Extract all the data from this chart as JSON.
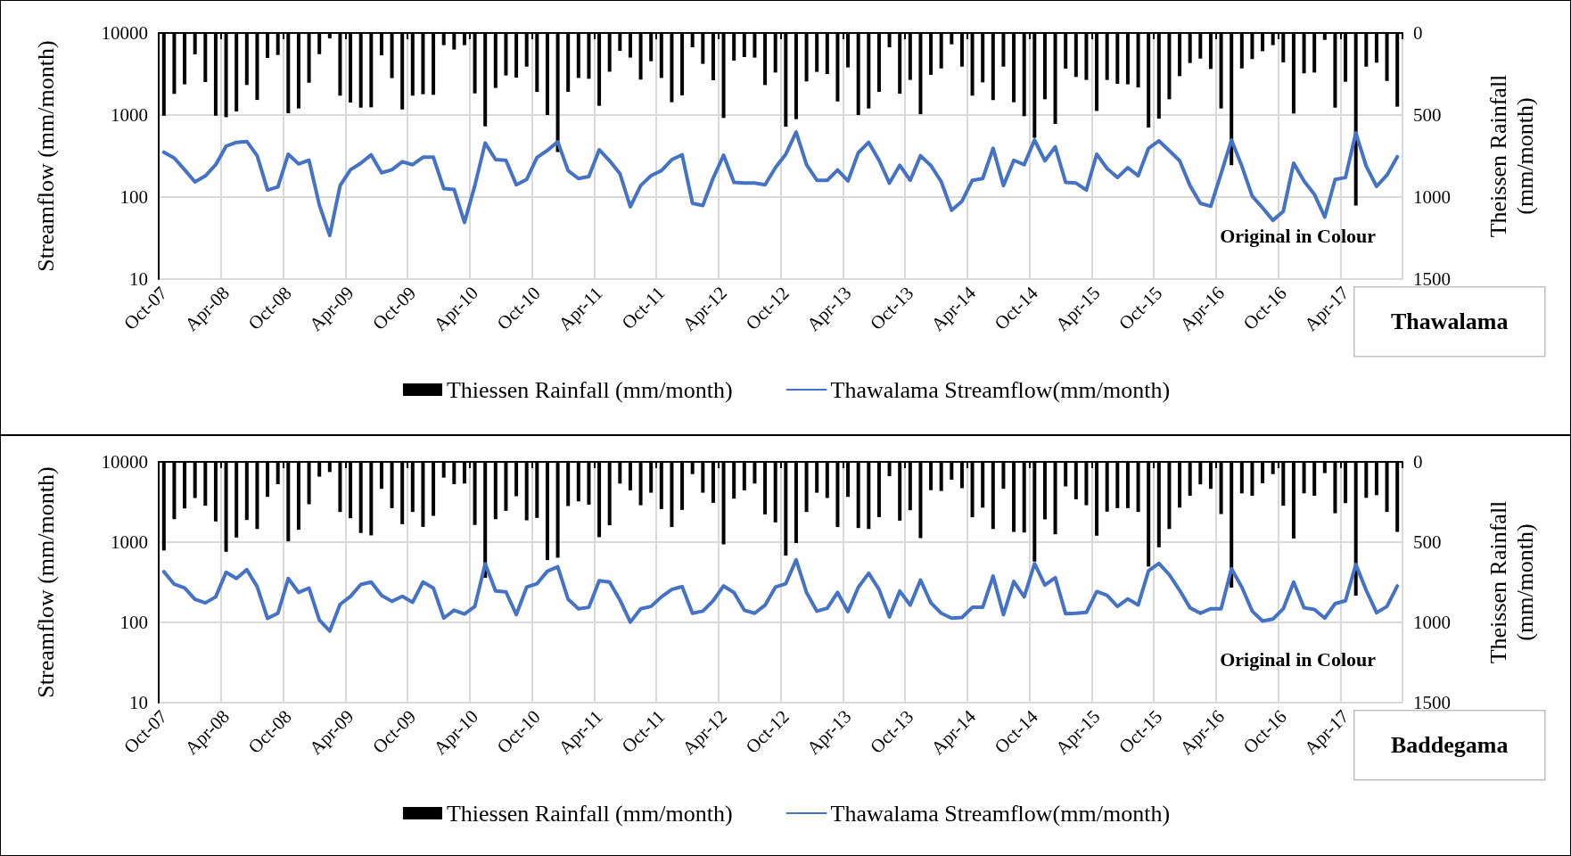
{
  "chart_data": [
    {
      "type": "line",
      "ylabel": "Streamflow (mm/month)",
      "y2label": "Theissen Rainfall (mm/month)",
      "annotations": [
        "Original in Colour",
        "Thawalama"
      ],
      "categories": [
        "Oct-07",
        null,
        null,
        null,
        null,
        null,
        "Apr-08",
        null,
        null,
        null,
        null,
        null,
        "Oct-08",
        null,
        null,
        null,
        null,
        null,
        "Apr-09",
        null,
        null,
        null,
        null,
        null,
        "Oct-09",
        null,
        null,
        null,
        null,
        null,
        "Apr-10",
        null,
        null,
        null,
        null,
        null,
        "Oct-10",
        null,
        null,
        null,
        null,
        null,
        "Apr-11",
        null,
        null,
        null,
        null,
        null,
        "Oct-11",
        null,
        null,
        null,
        null,
        null,
        "Apr-12",
        null,
        null,
        null,
        null,
        null,
        "Oct-12",
        null,
        null,
        null,
        null,
        null,
        "Apr-13",
        null,
        null,
        null,
        null,
        null,
        "Oct-13",
        null,
        null,
        null,
        null,
        null,
        "Apr-14",
        null,
        null,
        null,
        null,
        null,
        "Oct-14",
        null,
        null,
        null,
        null,
        null,
        "Apr-15",
        null,
        null,
        null,
        null,
        null,
        "Oct-15",
        null,
        null,
        null,
        null,
        null,
        "Apr-16",
        null,
        null,
        null,
        null,
        null,
        "Oct-16",
        null,
        null,
        null,
        null,
        null,
        "Apr-17",
        null,
        null,
        null,
        null,
        null
      ],
      "ylim": [
        10,
        10000
      ],
      "yticks": [
        10,
        100,
        1000,
        10000
      ],
      "log": "y",
      "y2lim": [
        1500,
        0
      ],
      "y2ticks": [
        0,
        500,
        1000,
        1500
      ],
      "grid": true,
      "legend": "bottom",
      "marker": "none",
      "series": [
        {
          "name": "Thiessen Rainfall (mm/month)",
          "type": "bar",
          "axis": "y2",
          "color": "#000000",
          "values": [
            504,
            371,
            313,
            130,
            299,
            504,
            513,
            478,
            317,
            408,
            152,
            134,
            489,
            460,
            303,
            129,
            33,
            382,
            424,
            455,
            453,
            136,
            275,
            466,
            382,
            373,
            377,
            74,
            101,
            74,
            368,
            569,
            335,
            259,
            272,
            205,
            359,
            500,
            726,
            359,
            274,
            279,
            444,
            236,
            109,
            150,
            284,
            172,
            274,
            422,
            380,
            87,
            188,
            288,
            518,
            168,
            147,
            150,
            317,
            241,
            571,
            525,
            295,
            237,
            250,
            417,
            210,
            500,
            460,
            359,
            87,
            370,
            286,
            495,
            255,
            216,
            69,
            205,
            382,
            301,
            409,
            205,
            422,
            507,
            639,
            404,
            554,
            217,
            268,
            286,
            475,
            286,
            310,
            313,
            332,
            576,
            522,
            404,
            263,
            183,
            156,
            219,
            460,
            806,
            216,
            159,
            111,
            74,
            179,
            491,
            246,
            241,
            42,
            455,
            297,
            1051,
            205,
            181,
            292,
            449
          ]
        },
        {
          "name": "Thawalama Streamflow(mm/month)",
          "color": "#4472c4",
          "values": [
            352,
            299,
            215,
            153,
            181,
            248,
            417,
            464,
            476,
            319,
            122,
            133,
            333,
            253,
            281,
            80,
            34,
            138,
            215,
            259,
            327,
            198,
            215,
            270,
            248,
            306,
            306,
            127,
            124,
            49,
            138,
            456,
            286,
            281,
            141,
            164,
            303,
            371,
            472,
            210,
            168,
            178,
            377,
            277,
            193,
            76,
            138,
            182,
            210,
            286,
            327,
            84,
            79,
            171,
            324,
            151,
            148,
            148,
            141,
            228,
            333,
            621,
            248,
            160,
            160,
            214,
            157,
            347,
            464,
            281,
            148,
            244,
            160,
            319,
            242,
            154,
            69,
            89,
            160,
            168,
            393,
            138,
            281,
            248,
            496,
            277,
            409,
            151,
            148,
            122,
            333,
            223,
            173,
            228,
            182,
            393,
            484,
            367,
            277,
            138,
            84,
            77,
            193,
            496,
            238,
            103,
            74,
            52,
            67,
            259,
            157,
            108,
            57,
            164,
            173,
            606,
            238,
            135,
            185,
            311
          ]
        }
      ]
    },
    {
      "type": "line",
      "ylabel": "Streamflow (mm/month)",
      "y2label": "Theissen Rainfall (mm/month)",
      "annotations": [
        "Original in Colour",
        "Baddegama"
      ],
      "categories": [
        "Oct-07",
        null,
        null,
        null,
        null,
        null,
        "Apr-08",
        null,
        null,
        null,
        null,
        null,
        "Oct-08",
        null,
        null,
        null,
        null,
        null,
        "Apr-09",
        null,
        null,
        null,
        null,
        null,
        "Oct-09",
        null,
        null,
        null,
        null,
        null,
        "Apr-10",
        null,
        null,
        null,
        null,
        null,
        "Oct-10",
        null,
        null,
        null,
        null,
        null,
        "Apr-11",
        null,
        null,
        null,
        null,
        null,
        "Oct-11",
        null,
        null,
        null,
        null,
        null,
        "Apr-12",
        null,
        null,
        null,
        null,
        null,
        "Oct-12",
        null,
        null,
        null,
        null,
        null,
        "Apr-13",
        null,
        null,
        null,
        null,
        null,
        "Oct-13",
        null,
        null,
        null,
        null,
        null,
        "Apr-14",
        null,
        null,
        null,
        null,
        null,
        "Oct-14",
        null,
        null,
        null,
        null,
        null,
        "Apr-15",
        null,
        null,
        null,
        null,
        null,
        "Oct-15",
        null,
        null,
        null,
        null,
        null,
        "Apr-16",
        null,
        null,
        null,
        null,
        null,
        "Oct-16",
        null,
        null,
        null,
        null,
        null,
        "Apr-17",
        null,
        null,
        null,
        null,
        null
      ],
      "ylim": [
        10,
        10000
      ],
      "yticks": [
        10,
        100,
        1000,
        10000
      ],
      "log": "y",
      "y2lim": [
        1500,
        0
      ],
      "y2ticks": [
        0,
        500,
        1000,
        1500
      ],
      "grid": true,
      "legend": "bottom",
      "marker": "none",
      "series": [
        {
          "name": "Thiessen Rainfall (mm/month)",
          "type": "bar",
          "axis": "y2",
          "color": "#000000",
          "values": [
            552,
            357,
            290,
            225,
            273,
            371,
            560,
            471,
            362,
            418,
            218,
            139,
            495,
            423,
            264,
            92,
            63,
            312,
            351,
            443,
            458,
            168,
            288,
            388,
            312,
            405,
            336,
            98,
            139,
            135,
            393,
            722,
            357,
            305,
            214,
            364,
            349,
            612,
            597,
            275,
            246,
            266,
            469,
            395,
            135,
            177,
            270,
            192,
            294,
            406,
            299,
            76,
            192,
            255,
            514,
            229,
            177,
            135,
            327,
            377,
            584,
            506,
            312,
            192,
            225,
            406,
            218,
            412,
            418,
            344,
            89,
            366,
            301,
            475,
            176,
            181,
            111,
            164,
            345,
            285,
            418,
            168,
            436,
            440,
            621,
            358,
            451,
            153,
            233,
            270,
            460,
            310,
            288,
            288,
            312,
            652,
            532,
            418,
            285,
            211,
            140,
            168,
            325,
            783,
            196,
            211,
            133,
            76,
            273,
            477,
            196,
            211,
            70,
            320,
            257,
            833,
            224,
            207,
            312,
            436
          ]
        },
        {
          "name": "Thawalama Streamflow(mm/month)",
          "color": "#4472c4",
          "values": [
            428,
            299,
            268,
            194,
            175,
            208,
            421,
            352,
            454,
            279,
            112,
            130,
            352,
            236,
            268,
            107,
            78,
            168,
            211,
            297,
            318,
            217,
            183,
            211,
            178,
            318,
            268,
            113,
            142,
            127,
            158,
            538,
            246,
            240,
            125,
            275,
            304,
            434,
            494,
            194,
            148,
            154,
            331,
            318,
            190,
            101,
            148,
            158,
            208,
            257,
            279,
            130,
            138,
            187,
            284,
            236,
            142,
            130,
            164,
            275,
            304,
            601,
            236,
            138,
            150,
            236,
            136,
            275,
            410,
            257,
            117,
            246,
            164,
            337,
            175,
            130,
            113,
            115,
            154,
            154,
            377,
            125,
            323,
            208,
            538,
            292,
            361,
            128,
            130,
            133,
            242,
            217,
            158,
            196,
            165,
            439,
            542,
            393,
            251,
            152,
            130,
            148,
            148,
            466,
            275,
            138,
            104,
            110,
            148,
            318,
            152,
            145,
            113,
            171,
            186,
            528,
            251,
            132,
            158,
            284
          ]
        }
      ]
    }
  ]
}
